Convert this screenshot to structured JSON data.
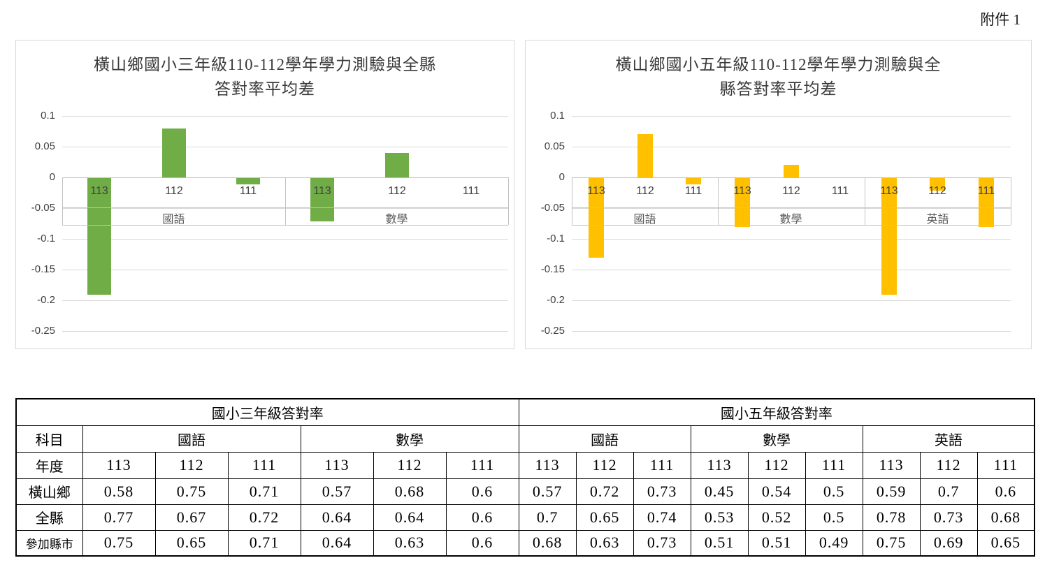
{
  "page": {
    "attachment_label": "附件 1"
  },
  "chart_data": [
    {
      "type": "bar",
      "title": "橫山鄉國小三年級110-112學年學力測驗與全縣答對率平均差",
      "title_lines": [
        "橫山鄉國小三年級110-112學年學力測驗與全縣",
        "答對率平均差"
      ],
      "bar_color": "#70AD47",
      "ylim": [
        -0.25,
        0.1
      ],
      "grid": true,
      "legend": "none",
      "y_ticks": [
        0.1,
        0.05,
        0,
        -0.05,
        -0.1,
        -0.15,
        -0.2,
        -0.25
      ],
      "groups": [
        {
          "label": "國語",
          "categories": [
            "113",
            "112",
            "111"
          ],
          "values": [
            -0.19,
            0.08,
            -0.01
          ]
        },
        {
          "label": "數學",
          "categories": [
            "113",
            "112",
            "111"
          ],
          "values": [
            -0.07,
            0.04,
            0
          ]
        }
      ]
    },
    {
      "type": "bar",
      "title": "橫山鄉國小五年級110-112學年學力測驗與全縣答對率平均差",
      "title_lines": [
        "橫山鄉國小五年級110-112學年學力測驗與全",
        "縣答對率平均差"
      ],
      "bar_color": "#FFC000",
      "ylim": [
        -0.25,
        0.1
      ],
      "grid": true,
      "legend": "none",
      "y_ticks": [
        0.1,
        0.05,
        0,
        -0.05,
        -0.1,
        -0.15,
        -0.2,
        -0.25
      ],
      "groups": [
        {
          "label": "國語",
          "categories": [
            "113",
            "112",
            "111"
          ],
          "values": [
            -0.13,
            0.07,
            -0.01
          ]
        },
        {
          "label": "數學",
          "categories": [
            "113",
            "112",
            "111"
          ],
          "values": [
            -0.08,
            0.02,
            0
          ]
        },
        {
          "label": "英語",
          "categories": [
            "113",
            "112",
            "111"
          ],
          "values": [
            -0.19,
            -0.02,
            -0.08
          ]
        }
      ]
    }
  ],
  "table": {
    "grade_headers": [
      {
        "label": "國小三年級答對率",
        "span": 7
      },
      {
        "label": "國小五年級答對率",
        "span": 9
      }
    ],
    "subject_row": {
      "label": "科目",
      "subjects": [
        {
          "label": "國語",
          "span": 3
        },
        {
          "label": "數學",
          "span": 3
        },
        {
          "label": "國語",
          "span": 3
        },
        {
          "label": "數學",
          "span": 3
        },
        {
          "label": "英語",
          "span": 3
        }
      ]
    },
    "year_row": {
      "label": "年度",
      "years": [
        "113",
        "112",
        "111",
        "113",
        "112",
        "111",
        "113",
        "112",
        "111",
        "113",
        "112",
        "111",
        "113",
        "112",
        "111"
      ]
    },
    "data_rows": [
      {
        "label": "橫山鄉",
        "values": [
          "0.58",
          "0.75",
          "0.71",
          "0.57",
          "0.68",
          "0.6",
          "0.57",
          "0.72",
          "0.73",
          "0.45",
          "0.54",
          "0.5",
          "0.59",
          "0.7",
          "0.6"
        ]
      },
      {
        "label": "全縣",
        "values": [
          "0.77",
          "0.67",
          "0.72",
          "0.64",
          "0.64",
          "0.6",
          "0.7",
          "0.65",
          "0.74",
          "0.53",
          "0.52",
          "0.5",
          "0.78",
          "0.73",
          "0.68"
        ]
      },
      {
        "label": "參加縣市",
        "values": [
          "0.75",
          "0.65",
          "0.71",
          "0.64",
          "0.63",
          "0.6",
          "0.68",
          "0.63",
          "0.73",
          "0.51",
          "0.51",
          "0.49",
          "0.75",
          "0.69",
          "0.65"
        ]
      }
    ]
  }
}
